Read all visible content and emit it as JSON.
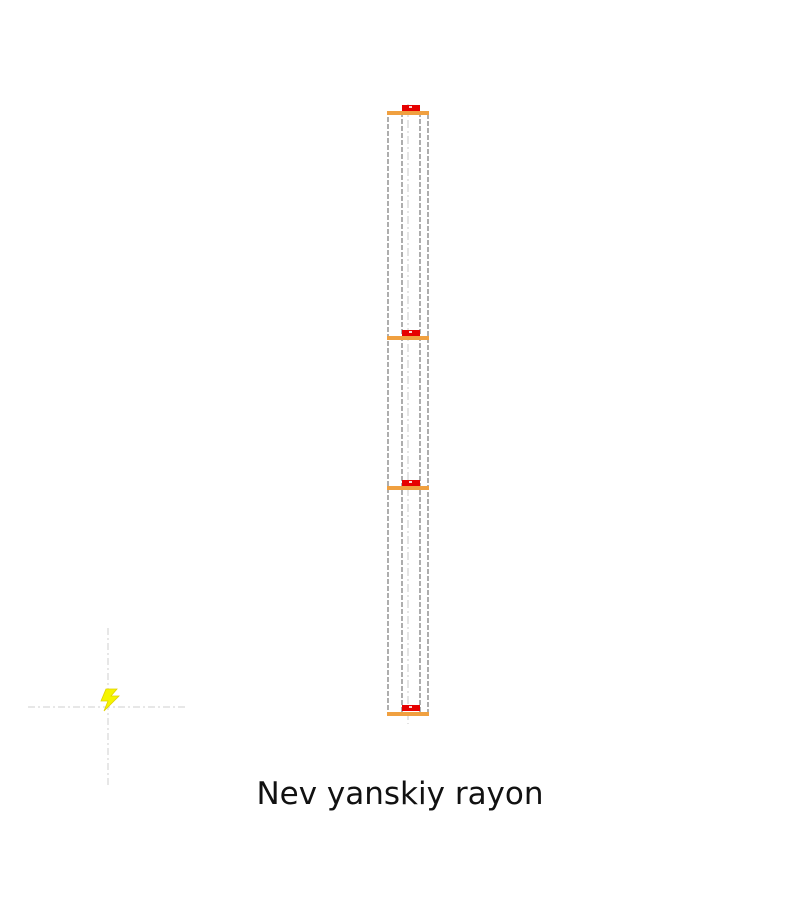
{
  "title": "Nev yanskiy rayon",
  "colors": {
    "background": "#ffffff",
    "column_outline": "#777777",
    "center_line": "#c8c8c8",
    "crosshair": "#cfcfcf",
    "level_bar": "#f0a040",
    "level_marker": "#e60000",
    "marker_highlight": "#ffd0d0",
    "icon": "#f5f500"
  },
  "icons": {
    "symbol": "lightning-bolt-icon"
  },
  "levels": [
    {
      "id": "level-1"
    },
    {
      "id": "level-2"
    },
    {
      "id": "level-3"
    },
    {
      "id": "level-4"
    }
  ]
}
